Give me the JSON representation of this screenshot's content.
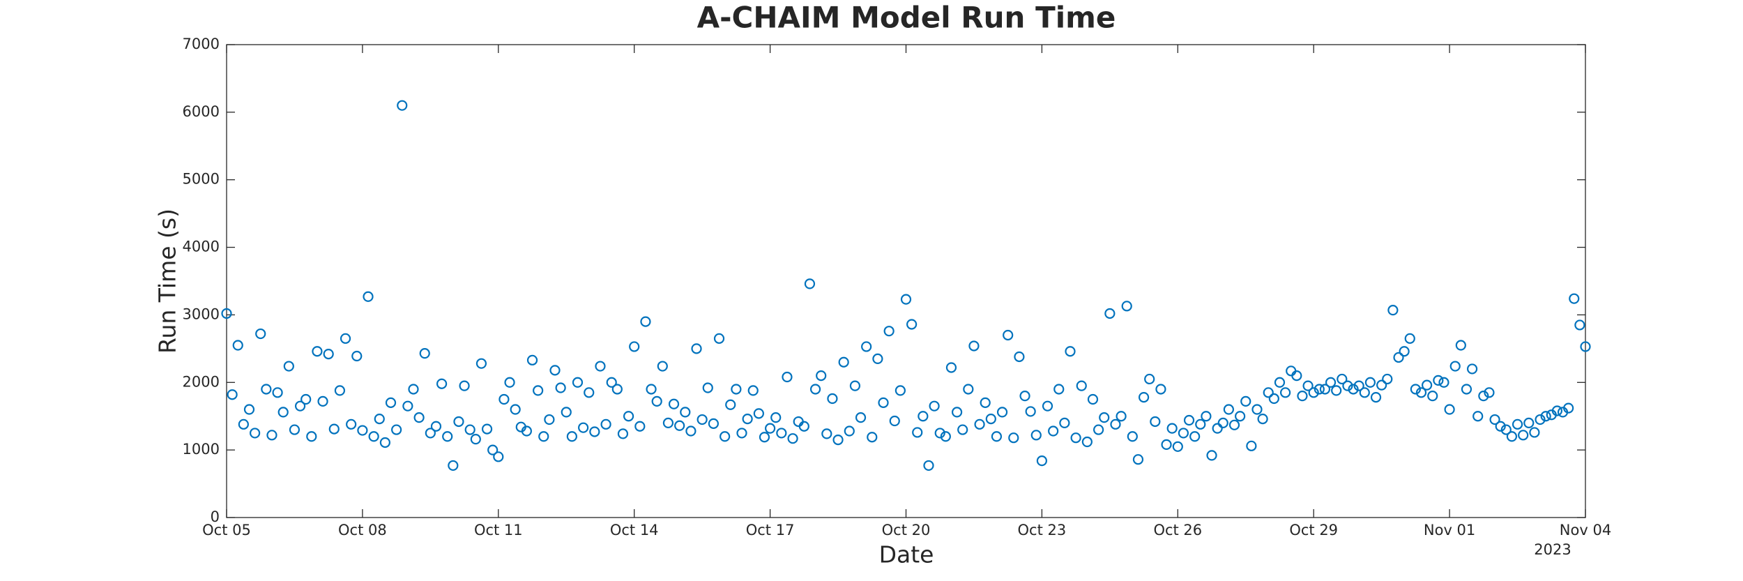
{
  "chart_data": {
    "type": "scatter",
    "title": "A-CHAIM Model Run Time",
    "x_label": "Date",
    "y_label": "Run Time (s)",
    "x_year_label": "2023",
    "color": "#0072BD",
    "marker": "open-circle",
    "xlim": [
      "2023-10-05",
      "2023-11-04"
    ],
    "xticks": [
      {
        "value": "2023-10-05",
        "label": "Oct 05"
      },
      {
        "value": "2023-10-08",
        "label": "Oct 08"
      },
      {
        "value": "2023-10-11",
        "label": "Oct 11"
      },
      {
        "value": "2023-10-14",
        "label": "Oct 14"
      },
      {
        "value": "2023-10-17",
        "label": "Oct 17"
      },
      {
        "value": "2023-10-20",
        "label": "Oct 20"
      },
      {
        "value": "2023-10-23",
        "label": "Oct 23"
      },
      {
        "value": "2023-10-26",
        "label": "Oct 26"
      },
      {
        "value": "2023-10-29",
        "label": "Oct 29"
      },
      {
        "value": "2023-11-01",
        "label": "Nov 01"
      },
      {
        "value": "2023-11-04",
        "label": "Nov 04"
      }
    ],
    "ylim": [
      0,
      7000
    ],
    "yticks": [
      0,
      1000,
      2000,
      3000,
      4000,
      5000,
      6000,
      7000
    ],
    "x": [
      "2023-10-05T00:00",
      "2023-10-05T03:00",
      "2023-10-05T06:00",
      "2023-10-05T09:00",
      "2023-10-05T12:00",
      "2023-10-05T15:00",
      "2023-10-05T18:00",
      "2023-10-05T21:00",
      "2023-10-06T00:00",
      "2023-10-06T03:00",
      "2023-10-06T06:00",
      "2023-10-06T09:00",
      "2023-10-06T12:00",
      "2023-10-06T15:00",
      "2023-10-06T18:00",
      "2023-10-06T21:00",
      "2023-10-07T00:00",
      "2023-10-07T03:00",
      "2023-10-07T06:00",
      "2023-10-07T09:00",
      "2023-10-07T12:00",
      "2023-10-07T15:00",
      "2023-10-07T18:00",
      "2023-10-07T21:00",
      "2023-10-08T00:00",
      "2023-10-08T03:00",
      "2023-10-08T06:00",
      "2023-10-08T09:00",
      "2023-10-08T12:00",
      "2023-10-08T15:00",
      "2023-10-08T18:00",
      "2023-10-08T21:00",
      "2023-10-09T00:00",
      "2023-10-09T03:00",
      "2023-10-09T06:00",
      "2023-10-09T09:00",
      "2023-10-09T12:00",
      "2023-10-09T15:00",
      "2023-10-09T18:00",
      "2023-10-09T21:00",
      "2023-10-10T00:00",
      "2023-10-10T03:00",
      "2023-10-10T06:00",
      "2023-10-10T09:00",
      "2023-10-10T12:00",
      "2023-10-10T15:00",
      "2023-10-10T18:00",
      "2023-10-10T21:00",
      "2023-10-11T00:00",
      "2023-10-11T03:00",
      "2023-10-11T06:00",
      "2023-10-11T09:00",
      "2023-10-11T12:00",
      "2023-10-11T15:00",
      "2023-10-11T18:00",
      "2023-10-11T21:00",
      "2023-10-12T00:00",
      "2023-10-12T03:00",
      "2023-10-12T06:00",
      "2023-10-12T09:00",
      "2023-10-12T12:00",
      "2023-10-12T15:00",
      "2023-10-12T18:00",
      "2023-10-12T21:00",
      "2023-10-13T00:00",
      "2023-10-13T03:00",
      "2023-10-13T06:00",
      "2023-10-13T09:00",
      "2023-10-13T12:00",
      "2023-10-13T15:00",
      "2023-10-13T18:00",
      "2023-10-13T21:00",
      "2023-10-14T00:00",
      "2023-10-14T03:00",
      "2023-10-14T06:00",
      "2023-10-14T09:00",
      "2023-10-14T12:00",
      "2023-10-14T15:00",
      "2023-10-14T18:00",
      "2023-10-14T21:00",
      "2023-10-15T00:00",
      "2023-10-15T03:00",
      "2023-10-15T06:00",
      "2023-10-15T09:00",
      "2023-10-15T12:00",
      "2023-10-15T15:00",
      "2023-10-15T18:00",
      "2023-10-15T21:00",
      "2023-10-16T00:00",
      "2023-10-16T03:00",
      "2023-10-16T06:00",
      "2023-10-16T09:00",
      "2023-10-16T12:00",
      "2023-10-16T15:00",
      "2023-10-16T18:00",
      "2023-10-16T21:00",
      "2023-10-17T00:00",
      "2023-10-17T03:00",
      "2023-10-17T06:00",
      "2023-10-17T09:00",
      "2023-10-17T12:00",
      "2023-10-17T15:00",
      "2023-10-17T18:00",
      "2023-10-17T21:00",
      "2023-10-18T00:00",
      "2023-10-18T03:00",
      "2023-10-18T06:00",
      "2023-10-18T09:00",
      "2023-10-18T12:00",
      "2023-10-18T15:00",
      "2023-10-18T18:00",
      "2023-10-18T21:00",
      "2023-10-19T00:00",
      "2023-10-19T03:00",
      "2023-10-19T06:00",
      "2023-10-19T09:00",
      "2023-10-19T12:00",
      "2023-10-19T15:00",
      "2023-10-19T18:00",
      "2023-10-19T21:00",
      "2023-10-20T00:00",
      "2023-10-20T03:00",
      "2023-10-20T06:00",
      "2023-10-20T09:00",
      "2023-10-20T12:00",
      "2023-10-20T15:00",
      "2023-10-20T18:00",
      "2023-10-20T21:00",
      "2023-10-21T00:00",
      "2023-10-21T03:00",
      "2023-10-21T06:00",
      "2023-10-21T09:00",
      "2023-10-21T12:00",
      "2023-10-21T15:00",
      "2023-10-21T18:00",
      "2023-10-21T21:00",
      "2023-10-22T00:00",
      "2023-10-22T03:00",
      "2023-10-22T06:00",
      "2023-10-22T09:00",
      "2023-10-22T12:00",
      "2023-10-22T15:00",
      "2023-10-22T18:00",
      "2023-10-22T21:00",
      "2023-10-23T00:00",
      "2023-10-23T03:00",
      "2023-10-23T06:00",
      "2023-10-23T09:00",
      "2023-10-23T12:00",
      "2023-10-23T15:00",
      "2023-10-23T18:00",
      "2023-10-23T21:00",
      "2023-10-24T00:00",
      "2023-10-24T03:00",
      "2023-10-24T06:00",
      "2023-10-24T09:00",
      "2023-10-24T12:00",
      "2023-10-24T15:00",
      "2023-10-24T18:00",
      "2023-10-24T21:00",
      "2023-10-25T00:00",
      "2023-10-25T03:00",
      "2023-10-25T06:00",
      "2023-10-25T09:00",
      "2023-10-25T12:00",
      "2023-10-25T15:00",
      "2023-10-25T18:00",
      "2023-10-25T21:00",
      "2023-10-26T00:00",
      "2023-10-26T03:00",
      "2023-10-26T06:00",
      "2023-10-26T09:00",
      "2023-10-26T12:00",
      "2023-10-26T15:00",
      "2023-10-26T18:00",
      "2023-10-26T21:00",
      "2023-10-27T00:00",
      "2023-10-27T03:00",
      "2023-10-27T06:00",
      "2023-10-27T09:00",
      "2023-10-27T12:00",
      "2023-10-27T15:00",
      "2023-10-27T18:00",
      "2023-10-27T21:00",
      "2023-10-28T00:00",
      "2023-10-28T03:00",
      "2023-10-28T06:00",
      "2023-10-28T09:00",
      "2023-10-28T12:00",
      "2023-10-28T15:00",
      "2023-10-28T18:00",
      "2023-10-28T21:00",
      "2023-10-29T00:00",
      "2023-10-29T03:00",
      "2023-10-29T06:00",
      "2023-10-29T09:00",
      "2023-10-29T12:00",
      "2023-10-29T15:00",
      "2023-10-29T18:00",
      "2023-10-29T21:00",
      "2023-10-30T00:00",
      "2023-10-30T03:00",
      "2023-10-30T06:00",
      "2023-10-30T09:00",
      "2023-10-30T12:00",
      "2023-10-30T15:00",
      "2023-10-30T18:00",
      "2023-10-30T21:00",
      "2023-10-31T00:00",
      "2023-10-31T03:00",
      "2023-10-31T06:00",
      "2023-10-31T09:00",
      "2023-10-31T12:00",
      "2023-10-31T15:00",
      "2023-10-31T18:00",
      "2023-10-31T21:00",
      "2023-11-01T00:00",
      "2023-11-01T03:00",
      "2023-11-01T06:00",
      "2023-11-01T09:00",
      "2023-11-01T12:00",
      "2023-11-01T15:00",
      "2023-11-01T18:00",
      "2023-11-01T21:00",
      "2023-11-02T00:00",
      "2023-11-02T03:00",
      "2023-11-02T06:00",
      "2023-11-02T09:00",
      "2023-11-02T12:00",
      "2023-11-02T15:00",
      "2023-11-02T18:00",
      "2023-11-02T21:00",
      "2023-11-03T00:00",
      "2023-11-03T03:00",
      "2023-11-03T06:00",
      "2023-11-03T09:00",
      "2023-11-03T12:00",
      "2023-11-03T15:00",
      "2023-11-03T18:00",
      "2023-11-03T21:00",
      "2023-11-04T00:00"
    ],
    "values": [
      3020,
      1820,
      2550,
      1380,
      1600,
      1250,
      2720,
      1900,
      1220,
      1850,
      1560,
      2240,
      1300,
      1650,
      1750,
      1200,
      2460,
      1720,
      2420,
      1310,
      1880,
      2650,
      1380,
      2390,
      1290,
      3270,
      1200,
      1460,
      1110,
      1700,
      1300,
      6100,
      1650,
      1900,
      1480,
      2430,
      1250,
      1350,
      1980,
      1200,
      770,
      1420,
      1950,
      1300,
      1160,
      2280,
      1310,
      1000,
      900,
      1750,
      2000,
      1600,
      1340,
      1280,
      2330,
      1880,
      1200,
      1450,
      2180,
      1920,
      1560,
      1200,
      2000,
      1330,
      1850,
      1270,
      2240,
      1380,
      2000,
      1900,
      1240,
      1500,
      2530,
      1350,
      2900,
      1900,
      1720,
      2240,
      1400,
      1680,
      1360,
      1560,
      1280,
      2500,
      1450,
      1920,
      1390,
      2650,
      1200,
      1670,
      1900,
      1250,
      1460,
      1880,
      1540,
      1190,
      1320,
      1480,
      1250,
      2080,
      1170,
      1420,
      1350,
      3460,
      1900,
      2100,
      1240,
      1760,
      1150,
      2300,
      1280,
      1950,
      1480,
      2530,
      1190,
      2350,
      1700,
      2760,
      1430,
      1880,
      3230,
      2860,
      1260,
      1500,
      770,
      1650,
      1250,
      1200,
      2220,
      1560,
      1300,
      1900,
      2540,
      1380,
      1700,
      1460,
      1200,
      1560,
      2700,
      1180,
      2380,
      1800,
      1570,
      1220,
      840,
      1650,
      1280,
      1900,
      1400,
      2460,
      1180,
      1950,
      1120,
      1750,
      1300,
      1480,
      3020,
      1380,
      1500,
      3130,
      1200,
      860,
      1780,
      2050,
      1420,
      1900,
      1080,
      1320,
      1050,
      1250,
      1440,
      1200,
      1380,
      1500,
      920,
      1320,
      1400,
      1600,
      1370,
      1500,
      1720,
      1060,
      1600,
      1460,
      1850,
      1760,
      2000,
      1850,
      2170,
      2100,
      1800,
      1950,
      1850,
      1900,
      1900,
      2000,
      1880,
      2050,
      1950,
      1900,
      1950,
      1850,
      2000,
      1780,
      1960,
      2050,
      3070,
      2370,
      2460,
      2650,
      1900,
      1850,
      1960,
      1800,
      2030,
      2000,
      1600,
      2240,
      2550,
      1900,
      2200,
      1500,
      1800,
      1850,
      1450,
      1350,
      1300,
      1200,
      1380,
      1220,
      1400,
      1260,
      1450,
      1500,
      1520,
      1580,
      1560,
      1620,
      3240,
      2850,
      2530
    ]
  }
}
